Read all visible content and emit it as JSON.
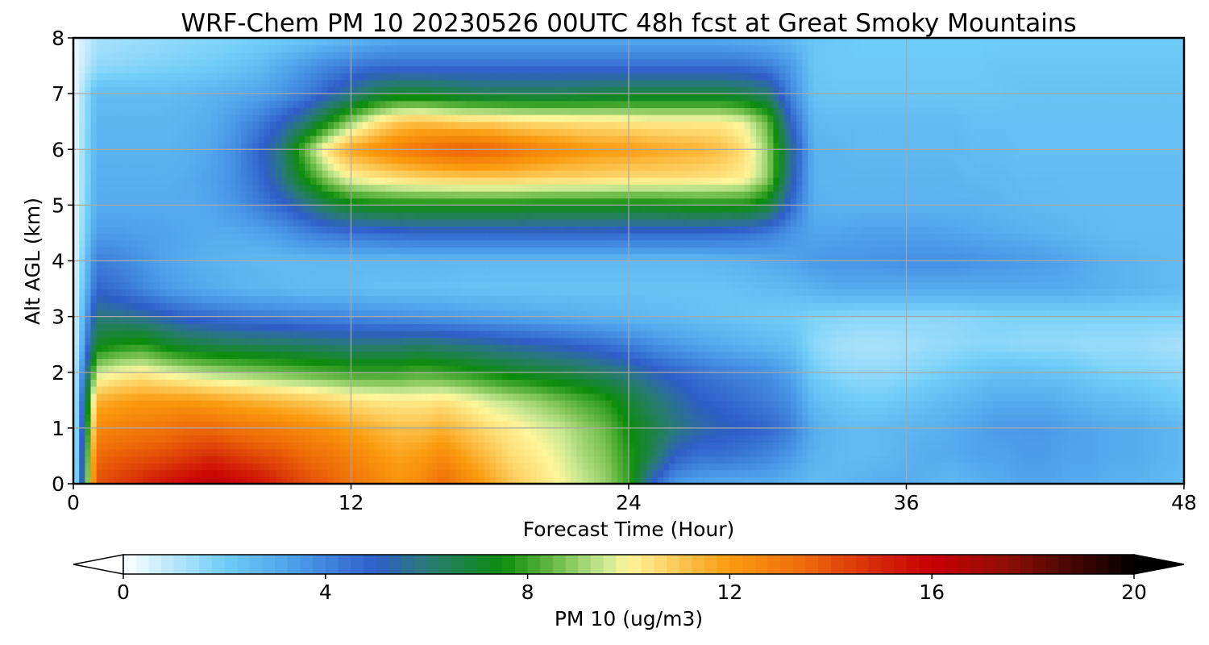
{
  "chart_data": {
    "type": "heatmap",
    "title": "WRF-Chem PM 10  20230526 00UTC 48h fcst at Great Smoky Mountains",
    "xlabel": "Forecast Time (Hour)",
    "ylabel": "Alt AGL (km)",
    "xlim": [
      0,
      48
    ],
    "ylim": [
      0,
      8
    ],
    "xticks": [
      0,
      12,
      24,
      36,
      48
    ],
    "yticks": [
      0,
      1,
      2,
      3,
      4,
      5,
      6,
      7,
      8
    ],
    "grid": true,
    "x": [
      0,
      1,
      2,
      3,
      4,
      5,
      6,
      7,
      8,
      9,
      10,
      11,
      12,
      13,
      14,
      15,
      16,
      17,
      18,
      19,
      20,
      21,
      22,
      23,
      24,
      25,
      26,
      27,
      28,
      29,
      30,
      31,
      32,
      33,
      34,
      35,
      36,
      37,
      38,
      39,
      40,
      41,
      42,
      43,
      44,
      45,
      46,
      47,
      48
    ],
    "y": [
      0,
      0.5,
      1,
      1.5,
      2,
      2.5,
      3,
      3.5,
      4,
      4.5,
      5,
      5.5,
      6,
      6.5,
      7,
      7.5,
      8
    ],
    "z": [
      [
        0.2,
        14.0,
        14.5,
        15.0,
        15.5,
        16.0,
        16.5,
        16.0,
        15.5,
        14.8,
        14.2,
        13.8,
        13.2,
        12.8,
        12.2,
        12.5,
        13.5,
        12.5,
        11.8,
        11.0,
        10.5,
        10.0,
        9.5,
        9.0,
        8.0,
        5.0,
        3.5,
        3.2,
        3.0,
        3.0,
        3.0,
        2.8,
        2.5,
        2.6,
        2.8,
        3.0,
        3.0,
        2.8,
        2.6,
        2.8,
        3.0,
        3.2,
        3.2,
        3.0,
        3.0,
        2.8,
        2.8,
        2.6,
        2.5
      ],
      [
        0.2,
        13.5,
        13.8,
        14.0,
        14.2,
        14.5,
        14.8,
        14.5,
        14.2,
        14.0,
        13.5,
        13.2,
        12.8,
        12.2,
        11.8,
        12.0,
        12.5,
        11.8,
        11.2,
        10.5,
        10.2,
        9.8,
        9.2,
        8.8,
        7.8,
        6.5,
        5.0,
        4.5,
        4.5,
        4.3,
        4.0,
        3.5,
        2.8,
        2.6,
        2.5,
        2.6,
        2.8,
        3.0,
        3.0,
        3.2,
        3.2,
        3.4,
        3.4,
        3.2,
        3.2,
        3.0,
        3.0,
        2.8,
        2.6
      ],
      [
        0.2,
        12.5,
        12.8,
        13.0,
        13.2,
        13.5,
        13.5,
        13.2,
        13.0,
        12.8,
        12.5,
        12.2,
        11.8,
        11.5,
        11.2,
        11.2,
        11.5,
        11.0,
        10.5,
        10.2,
        9.8,
        9.5,
        9.0,
        8.5,
        7.5,
        6.8,
        6.0,
        5.5,
        5.2,
        5.0,
        4.8,
        4.2,
        3.0,
        2.6,
        2.5,
        2.6,
        2.7,
        2.8,
        3.0,
        3.2,
        3.5,
        3.5,
        3.5,
        3.3,
        3.2,
        3.0,
        3.0,
        2.8,
        2.6
      ],
      [
        0.2,
        11.5,
        11.8,
        12.0,
        12.0,
        12.0,
        11.8,
        11.6,
        11.4,
        11.2,
        11.0,
        10.8,
        10.5,
        10.3,
        10.2,
        10.2,
        10.4,
        10.0,
        9.6,
        9.3,
        9.0,
        8.6,
        8.2,
        7.8,
        7.0,
        6.2,
        5.6,
        5.0,
        4.8,
        4.5,
        4.2,
        3.8,
        2.5,
        2.2,
        2.0,
        2.0,
        2.2,
        2.4,
        2.6,
        2.8,
        3.0,
        3.0,
        3.0,
        2.8,
        2.6,
        2.5,
        2.4,
        2.2,
        2.0
      ],
      [
        0.2,
        9.5,
        10.0,
        10.2,
        9.8,
        9.5,
        9.2,
        9.0,
        8.8,
        8.6,
        8.4,
        8.2,
        8.0,
        8.0,
        8.0,
        8.2,
        8.0,
        7.8,
        7.5,
        7.2,
        7.0,
        6.8,
        6.5,
        6.2,
        5.8,
        5.2,
        4.8,
        4.5,
        4.2,
        4.0,
        3.8,
        3.2,
        2.0,
        1.6,
        1.5,
        1.5,
        1.6,
        1.8,
        2.0,
        2.2,
        2.4,
        2.4,
        2.3,
        2.2,
        2.0,
        1.8,
        1.8,
        1.7,
        1.6
      ],
      [
        0.2,
        7.2,
        7.6,
        7.8,
        7.2,
        6.8,
        6.6,
        6.5,
        6.4,
        6.3,
        6.2,
        6.1,
        6.0,
        6.0,
        6.0,
        6.2,
        6.0,
        5.8,
        5.6,
        5.4,
        5.2,
        5.0,
        4.8,
        4.5,
        4.2,
        3.8,
        3.5,
        3.2,
        3.0,
        2.8,
        2.6,
        2.4,
        1.6,
        1.3,
        1.2,
        1.2,
        1.3,
        1.4,
        1.5,
        1.6,
        1.6,
        1.5,
        1.5,
        1.5,
        1.4,
        1.4,
        1.4,
        1.3,
        1.2
      ],
      [
        0.2,
        6.0,
        5.8,
        5.6,
        5.2,
        4.8,
        4.6,
        4.4,
        4.3,
        4.2,
        4.1,
        4.0,
        3.9,
        3.8,
        3.7,
        3.6,
        3.5,
        3.4,
        3.3,
        3.2,
        3.1,
        3.0,
        2.9,
        2.8,
        2.7,
        2.6,
        2.5,
        2.4,
        2.3,
        2.2,
        2.1,
        2.0,
        1.8,
        1.7,
        1.6,
        1.6,
        1.6,
        1.6,
        1.6,
        1.7,
        1.8,
        1.8,
        1.8,
        1.8,
        1.8,
        1.8,
        1.8,
        1.8,
        1.8
      ],
      [
        0.2,
        4.8,
        4.5,
        4.0,
        3.5,
        3.2,
        3.0,
        2.8,
        2.7,
        2.6,
        2.5,
        2.5,
        2.5,
        2.4,
        2.4,
        2.4,
        2.4,
        2.3,
        2.3,
        2.3,
        2.3,
        2.3,
        2.3,
        2.3,
        2.3,
        2.3,
        2.3,
        2.3,
        2.3,
        2.4,
        2.5,
        2.6,
        2.8,
        3.0,
        3.0,
        3.0,
        3.0,
        3.0,
        3.0,
        3.0,
        3.0,
        3.0,
        3.0,
        3.0,
        2.9,
        2.8,
        2.7,
        2.6,
        2.5
      ],
      [
        0.2,
        4.2,
        4.0,
        3.6,
        3.2,
        3.0,
        2.8,
        2.7,
        2.6,
        2.6,
        2.6,
        2.6,
        2.6,
        2.6,
        2.6,
        2.6,
        2.6,
        2.6,
        2.6,
        2.6,
        2.6,
        2.6,
        2.6,
        2.6,
        2.6,
        2.6,
        2.6,
        2.6,
        2.7,
        2.8,
        3.0,
        3.2,
        3.5,
        3.6,
        3.6,
        3.7,
        3.8,
        3.8,
        3.8,
        3.7,
        3.6,
        3.5,
        3.4,
        3.2,
        3.0,
        2.8,
        2.7,
        2.6,
        2.5
      ],
      [
        0.2,
        3.4,
        3.4,
        3.3,
        3.2,
        3.1,
        3.0,
        3.0,
        3.2,
        3.5,
        4.0,
        4.3,
        4.5,
        4.6,
        4.7,
        4.8,
        4.8,
        4.8,
        4.8,
        4.8,
        4.8,
        4.8,
        4.8,
        4.8,
        4.7,
        4.7,
        4.7,
        4.7,
        4.6,
        4.5,
        4.2,
        3.6,
        3.2,
        3.2,
        3.3,
        3.3,
        3.3,
        3.3,
        3.2,
        3.1,
        3.0,
        2.9,
        2.8,
        2.7,
        2.6,
        2.5,
        2.5,
        2.5,
        2.5
      ],
      [
        0.2,
        3.0,
        3.0,
        3.0,
        3.0,
        3.0,
        3.2,
        3.6,
        4.2,
        4.8,
        5.6,
        6.6,
        7.2,
        7.4,
        7.5,
        7.5,
        7.5,
        7.5,
        7.5,
        7.5,
        7.4,
        7.4,
        7.4,
        7.4,
        7.4,
        7.4,
        7.5,
        7.6,
        7.6,
        7.6,
        7.0,
        4.8,
        2.9,
        2.8,
        2.8,
        2.8,
        2.8,
        2.8,
        2.8,
        2.8,
        2.7,
        2.6,
        2.6,
        2.5,
        2.5,
        2.5,
        2.5,
        2.5,
        2.5
      ],
      [
        0.2,
        2.9,
        2.9,
        2.9,
        2.9,
        3.0,
        3.3,
        3.8,
        4.6,
        5.8,
        7.5,
        9.0,
        10.0,
        10.3,
        10.6,
        10.8,
        10.9,
        11.0,
        11.0,
        11.0,
        10.9,
        10.8,
        10.8,
        10.7,
        10.6,
        10.6,
        10.6,
        10.5,
        10.4,
        10.2,
        9.0,
        5.5,
        2.8,
        2.7,
        2.7,
        2.7,
        2.7,
        2.7,
        2.7,
        2.6,
        2.6,
        2.5,
        2.5,
        2.5,
        2.5,
        2.5,
        2.5,
        2.5,
        2.5
      ],
      [
        0.2,
        2.8,
        2.8,
        2.8,
        2.8,
        2.9,
        3.2,
        3.8,
        4.8,
        6.0,
        8.5,
        10.5,
        11.8,
        12.3,
        12.8,
        13.2,
        13.6,
        13.8,
        13.6,
        13.2,
        12.8,
        12.5,
        12.2,
        12.0,
        12.0,
        11.8,
        11.6,
        11.5,
        11.2,
        10.5,
        9.0,
        5.8,
        2.8,
        2.7,
        2.6,
        2.6,
        2.6,
        2.6,
        2.6,
        2.5,
        2.5,
        2.4,
        2.4,
        2.4,
        2.4,
        2.4,
        2.4,
        2.4,
        2.4
      ],
      [
        0.2,
        2.7,
        2.7,
        2.7,
        2.7,
        2.8,
        3.0,
        3.5,
        4.2,
        5.0,
        6.0,
        7.5,
        9.0,
        10.2,
        11.0,
        11.2,
        11.0,
        10.8,
        10.8,
        10.6,
        10.5,
        10.5,
        10.4,
        10.4,
        10.3,
        10.2,
        10.2,
        10.2,
        10.2,
        9.8,
        8.5,
        5.0,
        2.6,
        2.5,
        2.5,
        2.5,
        2.5,
        2.5,
        2.5,
        2.4,
        2.4,
        2.4,
        2.4,
        2.4,
        2.4,
        2.4,
        2.4,
        2.4,
        2.4
      ],
      [
        0.2,
        2.5,
        2.5,
        2.5,
        2.5,
        2.6,
        2.8,
        3.0,
        3.2,
        3.6,
        4.2,
        5.0,
        5.8,
        6.6,
        7.0,
        7.0,
        6.8,
        6.6,
        6.5,
        6.5,
        6.5,
        6.5,
        6.6,
        6.7,
        6.8,
        6.8,
        6.8,
        6.8,
        6.8,
        6.6,
        6.2,
        4.0,
        2.3,
        2.2,
        2.2,
        2.2,
        2.2,
        2.2,
        2.2,
        2.2,
        2.2,
        2.3,
        2.3,
        2.3,
        2.3,
        2.3,
        2.3,
        2.3,
        2.3
      ],
      [
        0.2,
        1.5,
        1.6,
        1.7,
        1.8,
        1.9,
        2.0,
        2.2,
        2.5,
        3.0,
        3.5,
        4.0,
        4.3,
        4.5,
        4.6,
        4.6,
        4.6,
        4.6,
        4.6,
        4.6,
        4.6,
        4.6,
        4.6,
        4.6,
        4.6,
        4.6,
        4.6,
        4.6,
        4.6,
        4.5,
        4.2,
        3.5,
        2.2,
        2.1,
        2.1,
        2.1,
        2.1,
        2.1,
        2.1,
        2.1,
        2.2,
        2.2,
        2.2,
        2.2,
        2.2,
        2.2,
        2.2,
        2.2,
        2.2
      ],
      [
        0.2,
        1.2,
        1.3,
        1.4,
        1.5,
        1.6,
        1.7,
        1.8,
        1.9,
        2.0,
        2.2,
        2.4,
        2.6,
        2.8,
        3.0,
        3.0,
        3.0,
        3.0,
        3.0,
        3.0,
        3.0,
        3.0,
        3.0,
        3.0,
        3.0,
        3.0,
        3.0,
        3.0,
        3.0,
        2.9,
        2.8,
        2.6,
        2.2,
        2.1,
        2.0,
        2.0,
        2.0,
        2.0,
        2.0,
        2.0,
        2.0,
        2.0,
        2.0,
        2.0,
        2.0,
        2.0,
        2.0,
        2.0,
        2.0
      ]
    ],
    "colorbar": {
      "label": "PM 10  (ug/m3)",
      "min": 0,
      "max": 20,
      "ticks": [
        0,
        4,
        8,
        12,
        16,
        20
      ],
      "extend": "both",
      "stops": [
        {
          "v": 0,
          "c": "#ffffff"
        },
        {
          "v": 2,
          "c": "#6fcdf8"
        },
        {
          "v": 3.5,
          "c": "#4a9ae8"
        },
        {
          "v": 5,
          "c": "#2e5ec8"
        },
        {
          "v": 6,
          "c": "#2a7a78"
        },
        {
          "v": 7.5,
          "c": "#0c8c0c"
        },
        {
          "v": 8.5,
          "c": "#66b844"
        },
        {
          "v": 9.5,
          "c": "#c8e890"
        },
        {
          "v": 10,
          "c": "#fff59a"
        },
        {
          "v": 11,
          "c": "#fcc855"
        },
        {
          "v": 12,
          "c": "#fb9a0e"
        },
        {
          "v": 13.5,
          "c": "#ee6a08"
        },
        {
          "v": 15,
          "c": "#d42308"
        },
        {
          "v": 16,
          "c": "#c90000"
        },
        {
          "v": 17.5,
          "c": "#8e0f04"
        },
        {
          "v": 19,
          "c": "#3a0402"
        },
        {
          "v": 20,
          "c": "#000000"
        }
      ]
    }
  }
}
